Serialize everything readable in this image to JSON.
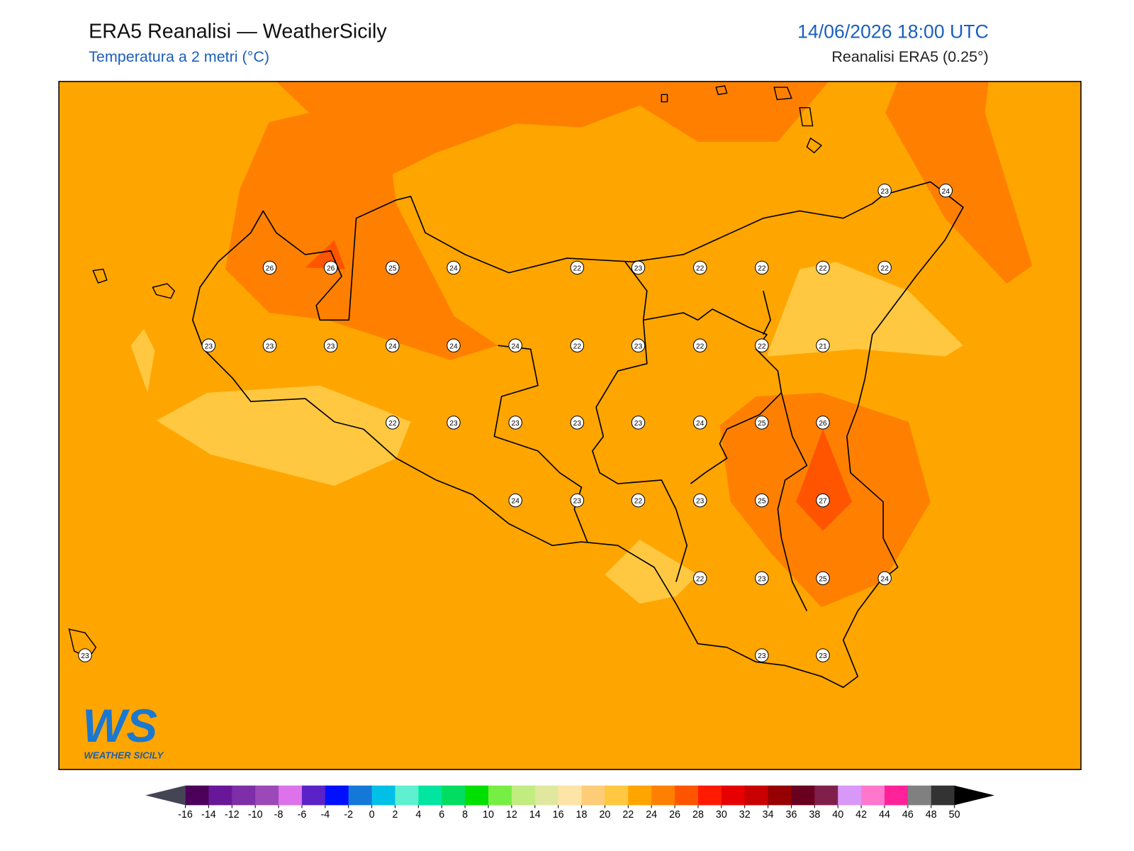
{
  "header": {
    "title": "ERA5 Reanalisi — WeatherSicily",
    "subtitle": "Temperatura a 2 metri (°C)",
    "datetime": "14/06/2026 18:00 UTC",
    "source": "Reanalisi ERA5 (0.25°)"
  },
  "logo": {
    "mark": "WS",
    "name": "WEATHER SICILY"
  },
  "stations": [
    23,
    24,
    26,
    26,
    25,
    24,
    22,
    23,
    22,
    22,
    22,
    22,
    23,
    23,
    23,
    24,
    24,
    24,
    22,
    23,
    22,
    22,
    21,
    22,
    23,
    23,
    23,
    23,
    24,
    25,
    26,
    24,
    23,
    22,
    23,
    25,
    27,
    22,
    23,
    25,
    24,
    23,
    23,
    23
  ],
  "colorbar": {
    "ticks": [
      -16,
      -14,
      -12,
      -10,
      -8,
      -6,
      -4,
      -2,
      0,
      2,
      4,
      6,
      8,
      10,
      12,
      14,
      16,
      18,
      20,
      22,
      24,
      26,
      28,
      30,
      32,
      34,
      36,
      38,
      40,
      42,
      44,
      46,
      48,
      50
    ],
    "colors": [
      "#4b0059",
      "#6a1699",
      "#7e2fa7",
      "#9b49b8",
      "#dd72ea",
      "#5b22c8",
      "#0010ff",
      "#1478d8",
      "#00c0e8",
      "#5ff0d0",
      "#00e5a0",
      "#00dd60",
      "#00e000",
      "#77ee44",
      "#c0ec80",
      "#e0e8a0",
      "#ffe4a8",
      "#ffcc77",
      "#ffc840",
      "#ffa500",
      "#ff8000",
      "#ff5500",
      "#ff1a00",
      "#e60000",
      "#c80000",
      "#960000",
      "#6a0020",
      "#80204a",
      "#d898f8",
      "#ff77cc",
      "#ff2299",
      "#808080",
      "#333333"
    ],
    "under": "#444455",
    "over": "#000000"
  }
}
